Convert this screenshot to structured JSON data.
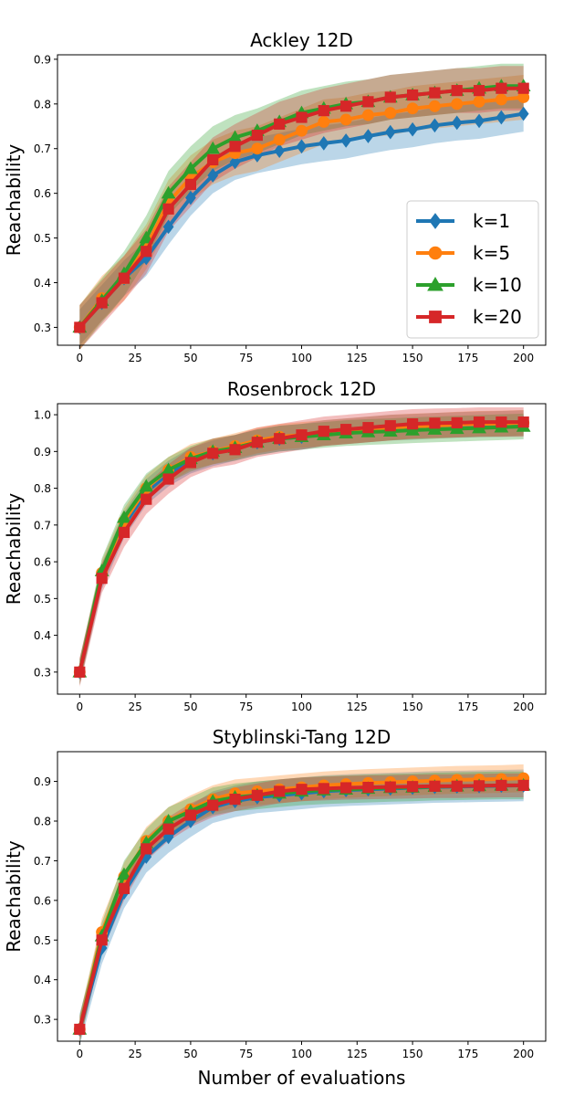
{
  "figure": {
    "xlabel": "Number of evaluations"
  },
  "series_styles": [
    {
      "name": "k=1",
      "color": "#1f77b4",
      "marker": "diamond"
    },
    {
      "name": "k=5",
      "color": "#ff7f0e",
      "marker": "circle"
    },
    {
      "name": "k=10",
      "color": "#2ca02c",
      "marker": "triangle"
    },
    {
      "name": "k=20",
      "color": "#d62728",
      "marker": "square"
    }
  ],
  "chart_data": [
    {
      "type": "line",
      "title": "Ackley 12D",
      "xlabel": "",
      "ylabel": "Reachability",
      "xlim": [
        -10,
        210
      ],
      "ylim": [
        0.26,
        0.91
      ],
      "xticks": [
        0,
        25,
        50,
        75,
        100,
        125,
        150,
        175,
        200
      ],
      "yticks": [
        0.3,
        0.4,
        0.5,
        0.6,
        0.7,
        0.8,
        0.9
      ],
      "legend": "lower-right",
      "x": [
        0,
        10,
        20,
        30,
        40,
        50,
        60,
        70,
        80,
        90,
        100,
        110,
        120,
        130,
        140,
        150,
        160,
        170,
        180,
        190,
        200
      ],
      "series": [
        {
          "name": "k=1",
          "values": [
            0.3,
            0.355,
            0.41,
            0.455,
            0.525,
            0.59,
            0.64,
            0.67,
            0.685,
            0.695,
            0.705,
            0.712,
            0.718,
            0.728,
            0.737,
            0.743,
            0.752,
            0.758,
            0.762,
            0.77,
            0.778
          ],
          "band": 0.04
        },
        {
          "name": "k=5",
          "values": [
            0.3,
            0.365,
            0.41,
            0.48,
            0.58,
            0.635,
            0.67,
            0.69,
            0.7,
            0.72,
            0.74,
            0.76,
            0.765,
            0.775,
            0.78,
            0.79,
            0.795,
            0.8,
            0.805,
            0.81,
            0.815
          ],
          "band": 0.05
        },
        {
          "name": "k=10",
          "values": [
            0.3,
            0.36,
            0.42,
            0.5,
            0.6,
            0.655,
            0.7,
            0.725,
            0.74,
            0.76,
            0.78,
            0.79,
            0.8,
            0.805,
            0.815,
            0.82,
            0.825,
            0.83,
            0.835,
            0.84,
            0.84
          ],
          "band": 0.05
        },
        {
          "name": "k=20",
          "values": [
            0.3,
            0.355,
            0.41,
            0.47,
            0.565,
            0.62,
            0.675,
            0.705,
            0.73,
            0.755,
            0.77,
            0.785,
            0.795,
            0.805,
            0.815,
            0.82,
            0.825,
            0.83,
            0.83,
            0.835,
            0.835
          ],
          "band": 0.05
        }
      ]
    },
    {
      "type": "line",
      "title": "Rosenbrock 12D",
      "xlabel": "",
      "ylabel": "Reachability",
      "xlim": [
        -10,
        210
      ],
      "ylim": [
        0.24,
        1.03
      ],
      "xticks": [
        0,
        25,
        50,
        75,
        100,
        125,
        150,
        175,
        200
      ],
      "yticks": [
        0.3,
        0.4,
        0.5,
        0.6,
        0.7,
        0.8,
        0.9,
        1.0
      ],
      "x": [
        0,
        10,
        20,
        30,
        40,
        50,
        60,
        70,
        80,
        90,
        100,
        110,
        120,
        130,
        140,
        150,
        160,
        170,
        180,
        190,
        200
      ],
      "series": [
        {
          "name": "k=1",
          "values": [
            0.3,
            0.56,
            0.7,
            0.79,
            0.84,
            0.875,
            0.895,
            0.91,
            0.925,
            0.935,
            0.94,
            0.95,
            0.955,
            0.96,
            0.965,
            0.967,
            0.97,
            0.972,
            0.974,
            0.975,
            0.977
          ],
          "band": 0.035
        },
        {
          "name": "k=5",
          "values": [
            0.3,
            0.57,
            0.71,
            0.8,
            0.85,
            0.885,
            0.9,
            0.915,
            0.93,
            0.94,
            0.945,
            0.95,
            0.955,
            0.96,
            0.965,
            0.968,
            0.97,
            0.973,
            0.975,
            0.976,
            0.978
          ],
          "band": 0.035
        },
        {
          "name": "k=10",
          "values": [
            0.3,
            0.575,
            0.72,
            0.805,
            0.85,
            0.88,
            0.9,
            0.91,
            0.925,
            0.935,
            0.94,
            0.945,
            0.95,
            0.953,
            0.955,
            0.958,
            0.96,
            0.962,
            0.964,
            0.966,
            0.968
          ],
          "band": 0.035
        },
        {
          "name": "k=20",
          "values": [
            0.3,
            0.555,
            0.68,
            0.77,
            0.825,
            0.87,
            0.895,
            0.905,
            0.925,
            0.935,
            0.945,
            0.955,
            0.96,
            0.965,
            0.97,
            0.975,
            0.977,
            0.978,
            0.98,
            0.98,
            0.98
          ],
          "band": 0.04
        }
      ]
    },
    {
      "type": "line",
      "title": "Styblinski-Tang 12D",
      "xlabel": "Number of evaluations",
      "ylabel": "Reachability",
      "xlim": [
        -10,
        210
      ],
      "ylim": [
        0.245,
        0.975
      ],
      "xticks": [
        0,
        25,
        50,
        75,
        100,
        125,
        150,
        175,
        200
      ],
      "yticks": [
        0.3,
        0.4,
        0.5,
        0.6,
        0.7,
        0.8,
        0.9
      ],
      "x": [
        0,
        10,
        20,
        30,
        40,
        50,
        60,
        70,
        80,
        90,
        100,
        110,
        120,
        130,
        140,
        150,
        160,
        170,
        180,
        190,
        200
      ],
      "series": [
        {
          "name": "k=1",
          "values": [
            0.275,
            0.48,
            0.62,
            0.71,
            0.76,
            0.8,
            0.835,
            0.85,
            0.86,
            0.865,
            0.87,
            0.875,
            0.878,
            0.88,
            0.882,
            0.884,
            0.886,
            0.887,
            0.888,
            0.889,
            0.89
          ],
          "band": 0.04
        },
        {
          "name": "k=5",
          "values": [
            0.275,
            0.52,
            0.66,
            0.75,
            0.8,
            0.83,
            0.855,
            0.87,
            0.875,
            0.88,
            0.885,
            0.89,
            0.893,
            0.896,
            0.898,
            0.9,
            0.902,
            0.904,
            0.905,
            0.906,
            0.908
          ],
          "band": 0.035
        },
        {
          "name": "k=10",
          "values": [
            0.275,
            0.51,
            0.665,
            0.745,
            0.8,
            0.825,
            0.85,
            0.86,
            0.865,
            0.87,
            0.875,
            0.878,
            0.88,
            0.882,
            0.884,
            0.885,
            0.887,
            0.888,
            0.889,
            0.89,
            0.89
          ],
          "band": 0.035
        },
        {
          "name": "k=20",
          "values": [
            0.275,
            0.5,
            0.63,
            0.73,
            0.78,
            0.815,
            0.84,
            0.855,
            0.865,
            0.875,
            0.88,
            0.882,
            0.884,
            0.885,
            0.886,
            0.887,
            0.888,
            0.888,
            0.889,
            0.89,
            0.89
          ],
          "band": 0.03
        }
      ]
    }
  ]
}
